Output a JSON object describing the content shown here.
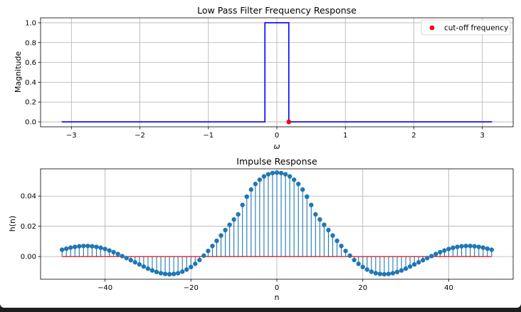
{
  "chart_data": [
    {
      "type": "line",
      "title": "Low Pass Filter Frequency Response",
      "xlabel": "ω",
      "ylabel": "Magnitude",
      "xlim": [
        -3.45,
        3.45
      ],
      "ylim": [
        -0.05,
        1.05
      ],
      "xticks": [
        -3,
        -2,
        -1,
        0,
        1,
        2,
        3
      ],
      "xtick_labels": [
        "−3",
        "−2",
        "−1",
        "0",
        "1",
        "2",
        "3"
      ],
      "yticks": [
        0.0,
        0.2,
        0.4,
        0.6,
        0.8,
        1.0
      ],
      "ytick_labels": [
        "0.0",
        "0.2",
        "0.4",
        "0.6",
        "0.8",
        "1.0"
      ],
      "grid": true,
      "legend_position": "top-right",
      "series": [
        {
          "style": "line",
          "color": "#0000ff",
          "x": [
            -3.1416,
            -0.1745,
            -0.1745,
            0.1745,
            0.1745,
            3.1416
          ],
          "y": [
            0,
            0,
            1,
            1,
            0,
            0
          ]
        },
        {
          "name": "cut-off frequency",
          "style": "point",
          "color": "#ff0000",
          "x": [
            0.1745
          ],
          "y": [
            0
          ]
        }
      ]
    },
    {
      "type": "stem",
      "title": "Impulse Response",
      "xlabel": "n",
      "ylabel": "h(n)",
      "xlim": [
        -55,
        55
      ],
      "ylim": [
        -0.015,
        0.058
      ],
      "xticks": [
        -40,
        -20,
        0,
        20,
        40
      ],
      "xtick_labels": [
        "−40",
        "−20",
        "0",
        "20",
        "40"
      ],
      "yticks": [
        0.0,
        0.02,
        0.04
      ],
      "ytick_labels": [
        "0.00",
        "0.02",
        "0.04"
      ],
      "grid": true,
      "stem_color": "#1f77b4",
      "baseline_color": "#d62728",
      "n": [
        -50,
        -49,
        -48,
        -47,
        -46,
        -45,
        -44,
        -43,
        -42,
        -41,
        -40,
        -39,
        -38,
        -37,
        -36,
        -35,
        -34,
        -33,
        -32,
        -31,
        -30,
        -29,
        -28,
        -27,
        -26,
        -25,
        -24,
        -23,
        -22,
        -21,
        -20,
        -19,
        -18,
        -17,
        -16,
        -15,
        -14,
        -13,
        -12,
        -11,
        -10,
        -9,
        -8,
        -7,
        -6,
        -5,
        -4,
        -3,
        -2,
        -1,
        0,
        1,
        2,
        3,
        4,
        5,
        6,
        7,
        8,
        9,
        10,
        11,
        12,
        13,
        14,
        15,
        16,
        17,
        18,
        19,
        20,
        21,
        22,
        23,
        24,
        25,
        26,
        27,
        28,
        29,
        30,
        31,
        32,
        33,
        34,
        35,
        36,
        37,
        38,
        39,
        40,
        41,
        42,
        43,
        44,
        45,
        46,
        47,
        48,
        49,
        50
      ],
      "h": [
        0.0045,
        0.0052,
        0.0059,
        0.0064,
        0.0068,
        0.007,
        0.007,
        0.0068,
        0.0064,
        0.0058,
        0.005,
        0.004,
        0.0029,
        0.0017,
        0.0003,
        -0.001,
        -0.0024,
        -0.0038,
        -0.0052,
        -0.0066,
        -0.008,
        -0.0092,
        -0.0102,
        -0.011,
        -0.0115,
        -0.0117,
        -0.0115,
        -0.011,
        -0.01,
        -0.0086,
        -0.0069,
        -0.0048,
        -0.0023,
        0.0006,
        0.0037,
        0.007,
        0.0104,
        0.0139,
        0.0175,
        0.021,
        0.0245,
        0.0279,
        0.0341,
        0.0396,
        0.0443,
        0.048,
        0.0508,
        0.053,
        0.0544,
        0.0552,
        0.0555,
        0.0552,
        0.0544,
        0.053,
        0.0508,
        0.048,
        0.0443,
        0.0396,
        0.0341,
        0.0279,
        0.0245,
        0.021,
        0.0175,
        0.0139,
        0.0104,
        0.007,
        0.0037,
        0.0006,
        -0.0023,
        -0.0048,
        -0.0069,
        -0.0086,
        -0.01,
        -0.011,
        -0.0115,
        -0.0117,
        -0.0115,
        -0.011,
        -0.0102,
        -0.0092,
        -0.008,
        -0.0066,
        -0.0052,
        -0.0038,
        -0.0024,
        -0.001,
        0.0003,
        0.0017,
        0.0029,
        0.004,
        0.005,
        0.0058,
        0.0064,
        0.0068,
        0.007,
        0.007,
        0.0068,
        0.0064,
        0.0059,
        0.0052,
        0.0045
      ]
    }
  ]
}
